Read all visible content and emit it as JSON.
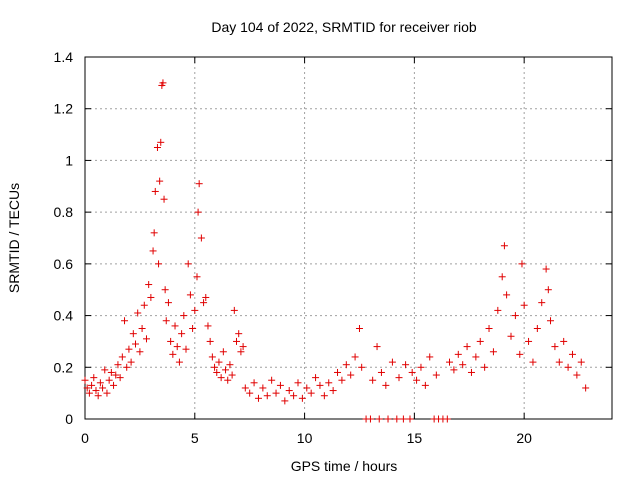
{
  "chart_data": {
    "type": "scatter",
    "title": "Day 104 of 2022, SRMTID for receiver riob",
    "xlabel": "GPS time / hours",
    "ylabel": "SRMTID / TECUs",
    "xlim": [
      0,
      24
    ],
    "ylim": [
      0,
      1.4
    ],
    "xticks": [
      0,
      5,
      10,
      15,
      20
    ],
    "xtick_labels": [
      "0",
      "5",
      "10",
      "15",
      "20"
    ],
    "yticks": [
      0,
      0.2,
      0.4,
      0.6,
      0.8,
      1.0,
      1.2,
      1.4
    ],
    "ytick_labels": [
      "0",
      "0.2",
      "0.4",
      "0.6",
      "0.8",
      "1",
      "1.2",
      "1.4"
    ],
    "grid": true,
    "marker": "+",
    "series_color": "#e00000",
    "series": [
      {
        "name": "SRMTID",
        "points": [
          [
            0.0,
            0.15
          ],
          [
            0.1,
            0.12
          ],
          [
            0.2,
            0.1
          ],
          [
            0.3,
            0.13
          ],
          [
            0.4,
            0.16
          ],
          [
            0.5,
            0.11
          ],
          [
            0.6,
            0.09
          ],
          [
            0.7,
            0.14
          ],
          [
            0.8,
            0.12
          ],
          [
            0.9,
            0.19
          ],
          [
            1.0,
            0.1
          ],
          [
            1.1,
            0.15
          ],
          [
            1.2,
            0.18
          ],
          [
            1.3,
            0.13
          ],
          [
            1.4,
            0.17
          ],
          [
            1.5,
            0.21
          ],
          [
            1.6,
            0.16
          ],
          [
            1.7,
            0.24
          ],
          [
            1.8,
            0.38
          ],
          [
            1.9,
            0.2
          ],
          [
            2.0,
            0.27
          ],
          [
            2.1,
            0.22
          ],
          [
            2.2,
            0.33
          ],
          [
            2.3,
            0.29
          ],
          [
            2.4,
            0.41
          ],
          [
            2.5,
            0.26
          ],
          [
            2.6,
            0.35
          ],
          [
            2.7,
            0.44
          ],
          [
            2.8,
            0.31
          ],
          [
            2.9,
            0.52
          ],
          [
            3.0,
            0.47
          ],
          [
            3.1,
            0.65
          ],
          [
            3.15,
            0.72
          ],
          [
            3.2,
            0.88
          ],
          [
            3.3,
            1.05
          ],
          [
            3.35,
            0.6
          ],
          [
            3.4,
            0.92
          ],
          [
            3.45,
            1.07
          ],
          [
            3.5,
            1.29
          ],
          [
            3.55,
            1.3
          ],
          [
            3.6,
            0.85
          ],
          [
            3.65,
            0.5
          ],
          [
            3.7,
            0.38
          ],
          [
            3.8,
            0.45
          ],
          [
            3.9,
            0.3
          ],
          [
            4.0,
            0.25
          ],
          [
            4.1,
            0.36
          ],
          [
            4.2,
            0.28
          ],
          [
            4.3,
            0.22
          ],
          [
            4.4,
            0.33
          ],
          [
            4.5,
            0.4
          ],
          [
            4.6,
            0.27
          ],
          [
            4.7,
            0.6
          ],
          [
            4.8,
            0.48
          ],
          [
            4.9,
            0.35
          ],
          [
            5.0,
            0.42
          ],
          [
            5.1,
            0.55
          ],
          [
            5.15,
            0.8
          ],
          [
            5.2,
            0.91
          ],
          [
            5.3,
            0.7
          ],
          [
            5.4,
            0.45
          ],
          [
            5.5,
            0.47
          ],
          [
            5.6,
            0.36
          ],
          [
            5.7,
            0.3
          ],
          [
            5.8,
            0.24
          ],
          [
            5.9,
            0.2
          ],
          [
            6.0,
            0.18
          ],
          [
            6.1,
            0.22
          ],
          [
            6.2,
            0.16
          ],
          [
            6.3,
            0.26
          ],
          [
            6.4,
            0.19
          ],
          [
            6.5,
            0.15
          ],
          [
            6.6,
            0.21
          ],
          [
            6.7,
            0.17
          ],
          [
            6.8,
            0.42
          ],
          [
            6.9,
            0.3
          ],
          [
            7.0,
            0.33
          ],
          [
            7.1,
            0.26
          ],
          [
            7.2,
            0.28
          ],
          [
            7.3,
            0.12
          ],
          [
            7.5,
            0.1
          ],
          [
            7.7,
            0.14
          ],
          [
            7.9,
            0.08
          ],
          [
            8.1,
            0.12
          ],
          [
            8.3,
            0.09
          ],
          [
            8.5,
            0.15
          ],
          [
            8.7,
            0.1
          ],
          [
            8.9,
            0.13
          ],
          [
            9.1,
            0.07
          ],
          [
            9.3,
            0.11
          ],
          [
            9.5,
            0.09
          ],
          [
            9.7,
            0.14
          ],
          [
            9.9,
            0.08
          ],
          [
            10.1,
            0.12
          ],
          [
            10.3,
            0.1
          ],
          [
            10.5,
            0.16
          ],
          [
            10.7,
            0.13
          ],
          [
            10.9,
            0.09
          ],
          [
            11.1,
            0.14
          ],
          [
            11.3,
            0.11
          ],
          [
            11.5,
            0.18
          ],
          [
            11.7,
            0.15
          ],
          [
            11.9,
            0.21
          ],
          [
            12.1,
            0.17
          ],
          [
            12.3,
            0.24
          ],
          [
            12.5,
            0.35
          ],
          [
            12.6,
            0.2
          ],
          [
            12.8,
            0.0
          ],
          [
            13.0,
            0.0
          ],
          [
            13.1,
            0.15
          ],
          [
            13.3,
            0.28
          ],
          [
            13.4,
            0.0
          ],
          [
            13.5,
            0.18
          ],
          [
            13.7,
            0.13
          ],
          [
            13.8,
            0.0
          ],
          [
            14.0,
            0.22
          ],
          [
            14.2,
            0.0
          ],
          [
            14.3,
            0.16
          ],
          [
            14.5,
            0.0
          ],
          [
            14.6,
            0.21
          ],
          [
            14.8,
            0.0
          ],
          [
            14.9,
            0.18
          ],
          [
            15.1,
            0.15
          ],
          [
            15.3,
            0.2
          ],
          [
            15.5,
            0.13
          ],
          [
            15.7,
            0.24
          ],
          [
            15.9,
            0.0
          ],
          [
            16.0,
            0.17
          ],
          [
            16.1,
            0.0
          ],
          [
            16.3,
            0.0
          ],
          [
            16.5,
            0.0
          ],
          [
            16.6,
            0.22
          ],
          [
            16.8,
            0.19
          ],
          [
            17.0,
            0.25
          ],
          [
            17.2,
            0.21
          ],
          [
            17.4,
            0.28
          ],
          [
            17.6,
            0.18
          ],
          [
            17.8,
            0.24
          ],
          [
            18.0,
            0.3
          ],
          [
            18.2,
            0.2
          ],
          [
            18.4,
            0.35
          ],
          [
            18.6,
            0.26
          ],
          [
            18.8,
            0.42
          ],
          [
            19.0,
            0.55
          ],
          [
            19.1,
            0.67
          ],
          [
            19.2,
            0.48
          ],
          [
            19.4,
            0.32
          ],
          [
            19.6,
            0.4
          ],
          [
            19.8,
            0.25
          ],
          [
            19.9,
            0.6
          ],
          [
            20.0,
            0.44
          ],
          [
            20.2,
            0.3
          ],
          [
            20.4,
            0.22
          ],
          [
            20.6,
            0.35
          ],
          [
            20.8,
            0.45
          ],
          [
            21.0,
            0.58
          ],
          [
            21.1,
            0.5
          ],
          [
            21.2,
            0.38
          ],
          [
            21.4,
            0.28
          ],
          [
            21.6,
            0.22
          ],
          [
            21.8,
            0.3
          ],
          [
            22.0,
            0.2
          ],
          [
            22.2,
            0.25
          ],
          [
            22.4,
            0.17
          ],
          [
            22.6,
            0.22
          ],
          [
            22.8,
            0.12
          ]
        ]
      }
    ]
  }
}
